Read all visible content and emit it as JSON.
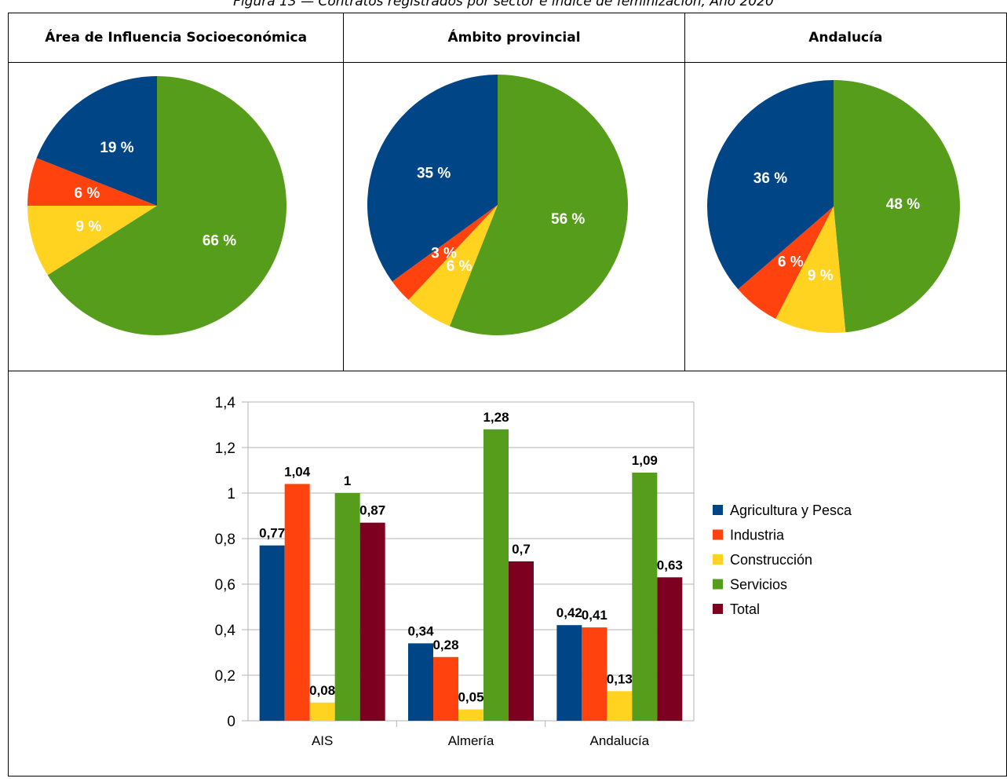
{
  "caption": "Figura 13 — Contratos registrados por sector e índice de feminización, Año 2020",
  "headers": [
    "Área de Influencia Socioeconómica",
    "Ámbito provincial",
    "Andalucía"
  ],
  "colors": {
    "Agricultura y Pesca": "#004586",
    "Industria": "#ff420e",
    "Construcción": "#ffd320",
    "Servicios": "#579d1c",
    "Total": "#7e0021"
  },
  "chart_data": [
    {
      "type": "pie",
      "title": "Área de Influencia Socioeconómica",
      "slices": [
        {
          "name": "Servicios",
          "value": 66,
          "label": "66 %"
        },
        {
          "name": "Construcción",
          "value": 9,
          "label": "9 %"
        },
        {
          "name": "Industria",
          "value": 6,
          "label": "6 %"
        },
        {
          "name": "Agricultura y Pesca",
          "value": 19,
          "label": "19 %"
        }
      ]
    },
    {
      "type": "pie",
      "title": "Ámbito provincial",
      "slices": [
        {
          "name": "Servicios",
          "value": 56,
          "label": "56 %"
        },
        {
          "name": "Construcción",
          "value": 6,
          "label": "6 %"
        },
        {
          "name": "Industria",
          "value": 3,
          "label": "3 %"
        },
        {
          "name": "Agricultura y Pesca",
          "value": 35,
          "label": "35 %"
        }
      ]
    },
    {
      "type": "pie",
      "title": "Andalucía",
      "slices": [
        {
          "name": "Servicios",
          "value": 48,
          "label": "48 %"
        },
        {
          "name": "Construcción",
          "value": 9,
          "label": "9 %"
        },
        {
          "name": "Industria",
          "value": 6,
          "label": "6 %"
        },
        {
          "name": "Agricultura y Pesca",
          "value": 36,
          "label": "36 %"
        }
      ]
    },
    {
      "type": "bar",
      "categories": [
        "AIS",
        "Almería",
        "Andalucía"
      ],
      "ylim": [
        0,
        1.4
      ],
      "yticks": [
        "0",
        "0,2",
        "0,4",
        "0,6",
        "0,8",
        "1",
        "1,2",
        "1,4"
      ],
      "grid": true,
      "legend_position": "right",
      "series": [
        {
          "name": "Agricultura y Pesca",
          "values": [
            0.77,
            0.34,
            0.42
          ],
          "labels": [
            "0,77",
            "0,34",
            "0,42"
          ]
        },
        {
          "name": "Industria",
          "values": [
            1.04,
            0.28,
            0.41
          ],
          "labels": [
            "1,04",
            "0,28",
            "0,41"
          ]
        },
        {
          "name": "Construcción",
          "values": [
            0.08,
            0.05,
            0.13
          ],
          "labels": [
            "0,08",
            "0,05",
            "0,13"
          ]
        },
        {
          "name": "Servicios",
          "values": [
            1.0,
            1.28,
            1.09
          ],
          "labels": [
            "1",
            "1,28",
            "1,09"
          ]
        },
        {
          "name": "Total",
          "values": [
            0.87,
            0.7,
            0.63
          ],
          "labels": [
            "0,87",
            "0,7",
            "0,63"
          ]
        }
      ]
    }
  ]
}
